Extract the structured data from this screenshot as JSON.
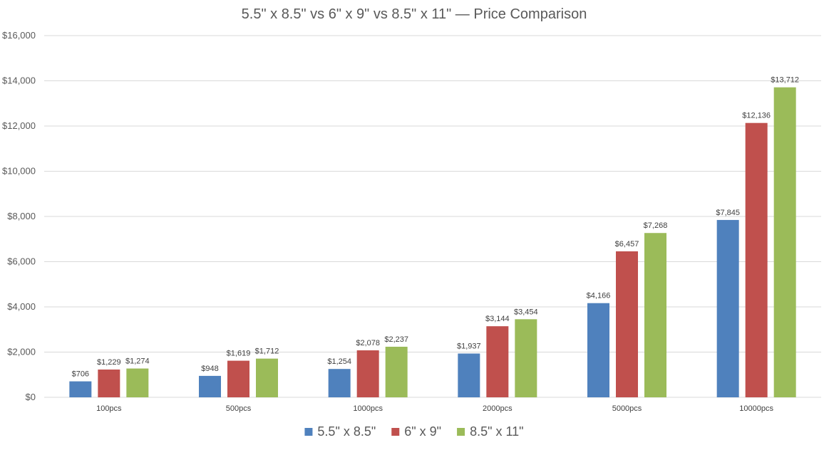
{
  "chart_data": {
    "type": "bar",
    "title": "5.5\" x 8.5\" vs 6\" x 9\" vs 8.5\" x 11\" — Price Comparison",
    "xlabel": "",
    "ylabel": "",
    "ylim": [
      0,
      16000
    ],
    "yticks": [
      "$0",
      "$2,000",
      "$4,000",
      "$6,000",
      "$8,000",
      "$10,000",
      "$12,000",
      "$14,000",
      "$16,000"
    ],
    "ytick_values": [
      0,
      2000,
      4000,
      6000,
      8000,
      10000,
      12000,
      14000,
      16000
    ],
    "grid": true,
    "legend_position": "bottom",
    "categories": [
      "100pcs",
      "500pcs",
      "1000pcs",
      "2000pcs",
      "5000pcs",
      "10000pcs"
    ],
    "series": [
      {
        "name": "5.5\" x 8.5\"",
        "color": "#4f81bd",
        "values": [
          706,
          948,
          1254,
          1937,
          4166,
          7845
        ],
        "labels": [
          "$706",
          "$948",
          "$1,254",
          "$1,937",
          "$4,166",
          "$7,845"
        ]
      },
      {
        "name": "6\" x 9\"",
        "color": "#c0504d",
        "values": [
          1229,
          1619,
          2078,
          3144,
          6457,
          12136
        ],
        "labels": [
          "$1,229",
          "$1,619",
          "$2,078",
          "$3,144",
          "$6,457",
          "$12,136"
        ]
      },
      {
        "name": "8.5\" x 11\"",
        "color": "#9bbb59",
        "values": [
          1274,
          1712,
          2237,
          3454,
          7268,
          13712
        ],
        "labels": [
          "$1,274",
          "$1,712",
          "$2,237",
          "$3,454",
          "$7,268",
          "$13,712"
        ]
      }
    ]
  }
}
